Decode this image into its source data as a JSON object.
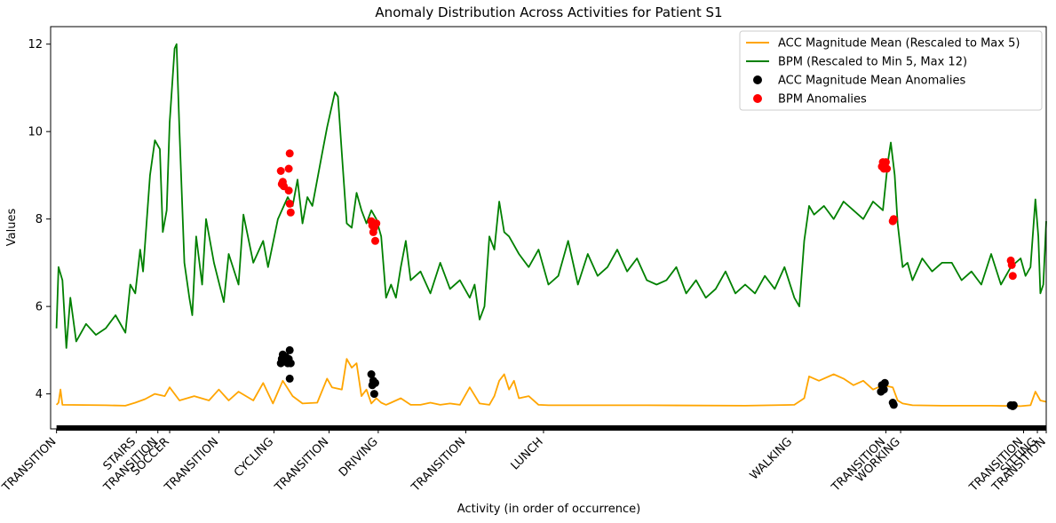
{
  "chart_data": {
    "type": "line",
    "title": "Anomaly Distribution Across Activities for Patient S1",
    "xlabel": "Activity (in order of occurrence)",
    "ylabel": "Values",
    "ylim": [
      3.2,
      12.4
    ],
    "yticks": [
      4,
      6,
      8,
      10,
      12
    ],
    "xlim": [
      -0.006,
      1.006
    ],
    "grid": false,
    "legend_position": "top-right",
    "activities": [
      {
        "label": "TRANSITION",
        "x": 0.0
      },
      {
        "label": "STAIRS",
        "x": 0.081
      },
      {
        "label": "TRANSITION",
        "x": 0.103
      },
      {
        "label": "SOCCER",
        "x": 0.115
      },
      {
        "label": "TRANSITION",
        "x": 0.165
      },
      {
        "label": "CYCLING",
        "x": 0.221
      },
      {
        "label": "TRANSITION",
        "x": 0.277
      },
      {
        "label": "DRIVING",
        "x": 0.327
      },
      {
        "label": "TRANSITION",
        "x": 0.416
      },
      {
        "label": "LUNCH",
        "x": 0.495
      },
      {
        "label": "WALKING",
        "x": 0.748
      },
      {
        "label": "TRANSITION",
        "x": 0.843
      },
      {
        "label": "WORKING",
        "x": 0.858
      },
      {
        "label": "TRANSITION",
        "x": 0.983
      },
      {
        "label": "SITTING",
        "x": 0.997
      },
      {
        "label": "TRANSITION",
        "x": 1.006
      }
    ],
    "series": [
      {
        "name": "ACC Magnitude Mean (Rescaled to Max 5)",
        "color": "#ffa500",
        "kind": "line",
        "points": [
          [
            0.0,
            3.75
          ],
          [
            0.002,
            3.8
          ],
          [
            0.004,
            4.1
          ],
          [
            0.006,
            3.75
          ],
          [
            0.05,
            3.74
          ],
          [
            0.07,
            3.73
          ],
          [
            0.08,
            3.8
          ],
          [
            0.09,
            3.88
          ],
          [
            0.1,
            4.0
          ],
          [
            0.11,
            3.95
          ],
          [
            0.115,
            4.15
          ],
          [
            0.125,
            3.85
          ],
          [
            0.14,
            3.95
          ],
          [
            0.155,
            3.85
          ],
          [
            0.165,
            4.1
          ],
          [
            0.175,
            3.85
          ],
          [
            0.185,
            4.05
          ],
          [
            0.2,
            3.85
          ],
          [
            0.21,
            4.25
          ],
          [
            0.22,
            3.78
          ],
          [
            0.23,
            4.3
          ],
          [
            0.24,
            3.95
          ],
          [
            0.25,
            3.78
          ],
          [
            0.265,
            3.8
          ],
          [
            0.275,
            4.35
          ],
          [
            0.28,
            4.15
          ],
          [
            0.29,
            4.1
          ],
          [
            0.295,
            4.8
          ],
          [
            0.3,
            4.6
          ],
          [
            0.305,
            4.7
          ],
          [
            0.31,
            3.95
          ],
          [
            0.315,
            4.1
          ],
          [
            0.32,
            3.78
          ],
          [
            0.325,
            3.9
          ],
          [
            0.33,
            3.8
          ],
          [
            0.335,
            3.75
          ],
          [
            0.34,
            3.8
          ],
          [
            0.35,
            3.9
          ],
          [
            0.36,
            3.75
          ],
          [
            0.37,
            3.75
          ],
          [
            0.38,
            3.8
          ],
          [
            0.39,
            3.75
          ],
          [
            0.4,
            3.78
          ],
          [
            0.41,
            3.75
          ],
          [
            0.42,
            4.15
          ],
          [
            0.43,
            3.78
          ],
          [
            0.44,
            3.75
          ],
          [
            0.445,
            3.95
          ],
          [
            0.45,
            4.3
          ],
          [
            0.455,
            4.45
          ],
          [
            0.46,
            4.1
          ],
          [
            0.465,
            4.3
          ],
          [
            0.47,
            3.9
          ],
          [
            0.48,
            3.95
          ],
          [
            0.49,
            3.75
          ],
          [
            0.5,
            3.74
          ],
          [
            0.6,
            3.74
          ],
          [
            0.7,
            3.73
          ],
          [
            0.75,
            3.75
          ],
          [
            0.76,
            3.9
          ],
          [
            0.765,
            4.4
          ],
          [
            0.775,
            4.3
          ],
          [
            0.79,
            4.45
          ],
          [
            0.8,
            4.35
          ],
          [
            0.81,
            4.2
          ],
          [
            0.82,
            4.3
          ],
          [
            0.83,
            4.1
          ],
          [
            0.84,
            4.2
          ],
          [
            0.85,
            4.15
          ],
          [
            0.855,
            3.85
          ],
          [
            0.86,
            3.78
          ],
          [
            0.87,
            3.74
          ],
          [
            0.9,
            3.73
          ],
          [
            0.95,
            3.73
          ],
          [
            0.98,
            3.72
          ],
          [
            0.99,
            3.74
          ],
          [
            0.995,
            4.05
          ],
          [
            1.0,
            3.85
          ],
          [
            1.006,
            3.82
          ]
        ]
      },
      {
        "name": "BPM (Rescaled to Min 5, Max 12)",
        "color": "#008000",
        "kind": "line",
        "points": [
          [
            0.0,
            5.5
          ],
          [
            0.002,
            6.9
          ],
          [
            0.006,
            6.6
          ],
          [
            0.01,
            5.05
          ],
          [
            0.014,
            6.2
          ],
          [
            0.02,
            5.2
          ],
          [
            0.03,
            5.6
          ],
          [
            0.04,
            5.35
          ],
          [
            0.05,
            5.5
          ],
          [
            0.06,
            5.8
          ],
          [
            0.07,
            5.4
          ],
          [
            0.075,
            6.5
          ],
          [
            0.08,
            6.3
          ],
          [
            0.085,
            7.3
          ],
          [
            0.088,
            6.8
          ],
          [
            0.095,
            9.0
          ],
          [
            0.1,
            9.8
          ],
          [
            0.105,
            9.6
          ],
          [
            0.108,
            7.7
          ],
          [
            0.112,
            8.2
          ],
          [
            0.115,
            10.2
          ],
          [
            0.12,
            11.9
          ],
          [
            0.122,
            12.0
          ],
          [
            0.125,
            10.0
          ],
          [
            0.128,
            8.2
          ],
          [
            0.13,
            7.0
          ],
          [
            0.135,
            6.2
          ],
          [
            0.138,
            5.8
          ],
          [
            0.142,
            7.6
          ],
          [
            0.148,
            6.5
          ],
          [
            0.152,
            8.0
          ],
          [
            0.16,
            7.0
          ],
          [
            0.17,
            6.1
          ],
          [
            0.175,
            7.2
          ],
          [
            0.185,
            6.5
          ],
          [
            0.19,
            8.1
          ],
          [
            0.2,
            7.0
          ],
          [
            0.21,
            7.5
          ],
          [
            0.215,
            6.9
          ],
          [
            0.225,
            8.0
          ],
          [
            0.235,
            8.5
          ],
          [
            0.24,
            8.3
          ],
          [
            0.245,
            8.9
          ],
          [
            0.25,
            7.9
          ],
          [
            0.255,
            8.5
          ],
          [
            0.26,
            8.3
          ],
          [
            0.27,
            9.5
          ],
          [
            0.275,
            10.1
          ],
          [
            0.28,
            10.6
          ],
          [
            0.283,
            10.9
          ],
          [
            0.286,
            10.8
          ],
          [
            0.29,
            9.5
          ],
          [
            0.295,
            7.9
          ],
          [
            0.3,
            7.8
          ],
          [
            0.305,
            8.6
          ],
          [
            0.31,
            8.2
          ],
          [
            0.315,
            7.9
          ],
          [
            0.32,
            8.2
          ],
          [
            0.325,
            8.0
          ],
          [
            0.33,
            7.6
          ],
          [
            0.335,
            6.2
          ],
          [
            0.34,
            6.5
          ],
          [
            0.345,
            6.2
          ],
          [
            0.35,
            6.9
          ],
          [
            0.355,
            7.5
          ],
          [
            0.36,
            6.6
          ],
          [
            0.37,
            6.8
          ],
          [
            0.38,
            6.3
          ],
          [
            0.39,
            7.0
          ],
          [
            0.4,
            6.4
          ],
          [
            0.41,
            6.6
          ],
          [
            0.42,
            6.2
          ],
          [
            0.425,
            6.5
          ],
          [
            0.43,
            5.7
          ],
          [
            0.435,
            6.0
          ],
          [
            0.44,
            7.6
          ],
          [
            0.445,
            7.3
          ],
          [
            0.45,
            8.4
          ],
          [
            0.455,
            7.7
          ],
          [
            0.46,
            7.6
          ],
          [
            0.47,
            7.2
          ],
          [
            0.48,
            6.9
          ],
          [
            0.49,
            7.3
          ],
          [
            0.5,
            6.5
          ],
          [
            0.51,
            6.7
          ],
          [
            0.52,
            7.5
          ],
          [
            0.53,
            6.5
          ],
          [
            0.54,
            7.2
          ],
          [
            0.55,
            6.7
          ],
          [
            0.56,
            6.9
          ],
          [
            0.57,
            7.3
          ],
          [
            0.58,
            6.8
          ],
          [
            0.59,
            7.1
          ],
          [
            0.6,
            6.6
          ],
          [
            0.61,
            6.5
          ],
          [
            0.62,
            6.6
          ],
          [
            0.63,
            6.9
          ],
          [
            0.64,
            6.3
          ],
          [
            0.65,
            6.6
          ],
          [
            0.66,
            6.2
          ],
          [
            0.67,
            6.4
          ],
          [
            0.68,
            6.8
          ],
          [
            0.69,
            6.3
          ],
          [
            0.7,
            6.5
          ],
          [
            0.71,
            6.3
          ],
          [
            0.72,
            6.7
          ],
          [
            0.73,
            6.4
          ],
          [
            0.74,
            6.9
          ],
          [
            0.75,
            6.2
          ],
          [
            0.755,
            6.0
          ],
          [
            0.76,
            7.5
          ],
          [
            0.765,
            8.3
          ],
          [
            0.77,
            8.1
          ],
          [
            0.78,
            8.3
          ],
          [
            0.79,
            8.0
          ],
          [
            0.8,
            8.4
          ],
          [
            0.81,
            8.2
          ],
          [
            0.82,
            8.0
          ],
          [
            0.83,
            8.4
          ],
          [
            0.84,
            8.2
          ],
          [
            0.845,
            9.3
          ],
          [
            0.848,
            9.75
          ],
          [
            0.852,
            9.0
          ],
          [
            0.855,
            7.9
          ],
          [
            0.86,
            6.9
          ],
          [
            0.865,
            7.0
          ],
          [
            0.87,
            6.6
          ],
          [
            0.88,
            7.1
          ],
          [
            0.89,
            6.8
          ],
          [
            0.9,
            7.0
          ],
          [
            0.91,
            7.0
          ],
          [
            0.92,
            6.6
          ],
          [
            0.93,
            6.8
          ],
          [
            0.94,
            6.5
          ],
          [
            0.95,
            7.2
          ],
          [
            0.96,
            6.5
          ],
          [
            0.97,
            6.9
          ],
          [
            0.98,
            7.1
          ],
          [
            0.985,
            6.7
          ],
          [
            0.99,
            6.9
          ],
          [
            0.995,
            8.45
          ],
          [
            0.998,
            7.6
          ],
          [
            1.0,
            6.3
          ],
          [
            1.003,
            6.5
          ],
          [
            1.006,
            7.95
          ]
        ]
      },
      {
        "name": "ACC Magnitude Mean Anomalies",
        "color": "#000000",
        "kind": "scatter",
        "points": [
          [
            0.228,
            4.7
          ],
          [
            0.229,
            4.8
          ],
          [
            0.23,
            4.9
          ],
          [
            0.232,
            4.75
          ],
          [
            0.233,
            4.85
          ],
          [
            0.235,
            4.7
          ],
          [
            0.236,
            4.8
          ],
          [
            0.237,
            5.0
          ],
          [
            0.237,
            4.35
          ],
          [
            0.238,
            4.7
          ],
          [
            0.32,
            4.45
          ],
          [
            0.321,
            4.2
          ],
          [
            0.322,
            4.3
          ],
          [
            0.323,
            4.0
          ],
          [
            0.324,
            4.25
          ],
          [
            0.838,
            4.05
          ],
          [
            0.839,
            4.2
          ],
          [
            0.84,
            4.15
          ],
          [
            0.841,
            4.1
          ],
          [
            0.842,
            4.25
          ],
          [
            0.85,
            3.8
          ],
          [
            0.851,
            3.75
          ],
          [
            0.97,
            3.74
          ],
          [
            0.972,
            3.72
          ],
          [
            0.973,
            3.74
          ]
        ]
      },
      {
        "name": "BPM Anomalies",
        "color": "#ff0000",
        "kind": "scatter",
        "points": [
          [
            0.228,
            9.1
          ],
          [
            0.229,
            8.8
          ],
          [
            0.23,
            8.85
          ],
          [
            0.231,
            8.75
          ],
          [
            0.236,
            9.15
          ],
          [
            0.236,
            8.65
          ],
          [
            0.237,
            9.5
          ],
          [
            0.237,
            8.35
          ],
          [
            0.238,
            8.15
          ],
          [
            0.32,
            7.95
          ],
          [
            0.321,
            7.85
          ],
          [
            0.322,
            7.7
          ],
          [
            0.323,
            7.8
          ],
          [
            0.324,
            7.5
          ],
          [
            0.325,
            7.9
          ],
          [
            0.839,
            9.2
          ],
          [
            0.84,
            9.3
          ],
          [
            0.841,
            9.15
          ],
          [
            0.842,
            9.25
          ],
          [
            0.843,
            9.3
          ],
          [
            0.844,
            9.15
          ],
          [
            0.85,
            7.95
          ],
          [
            0.851,
            8.0
          ],
          [
            0.97,
            7.05
          ],
          [
            0.971,
            6.95
          ],
          [
            0.972,
            6.7
          ]
        ]
      }
    ]
  }
}
